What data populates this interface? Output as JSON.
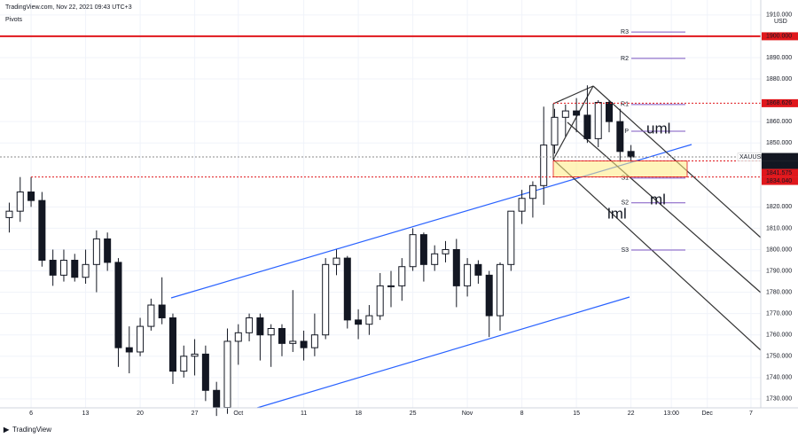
{
  "header": "TradingView.com, Nov 22, 2021 09:43 UTC+3",
  "footer": "TradingView",
  "chart_data": {
    "type": "candlestick",
    "indicator": "Pivots",
    "symbol": "XAUUSD",
    "currency": "USD",
    "x": [
      -2,
      -1,
      0,
      1,
      2,
      3,
      4,
      5,
      6,
      7,
      8,
      9,
      10,
      11,
      12,
      13,
      14,
      15,
      16,
      17,
      18,
      19,
      20,
      21,
      22,
      23,
      24,
      25,
      26,
      27,
      28,
      29,
      30,
      31,
      32,
      33,
      34,
      35,
      36,
      37,
      38,
      39,
      40,
      41,
      42,
      43,
      44,
      45,
      46,
      47,
      48,
      49,
      50,
      51,
      52,
      53,
      54,
      55
    ],
    "open": [
      1815,
      1818,
      1827,
      1823,
      1795,
      1788,
      1795,
      1787,
      1793,
      1805,
      1794,
      1754,
      1752,
      1764,
      1774,
      1768,
      1743,
      1750,
      1751,
      1734,
      1726,
      1757,
      1761,
      1768,
      1760,
      1763,
      1756,
      1757,
      1754,
      1760,
      1793,
      1796,
      1767,
      1765,
      1769,
      1783,
      1783,
      1792,
      1807,
      1793,
      1798,
      1800,
      1783,
      1793,
      1788,
      1769,
      1793,
      1818,
      1824,
      1830,
      1849,
      1862,
      1865,
      1863,
      1852,
      1869,
      1860,
      1846
    ],
    "high": [
      1822,
      1834,
      1834,
      1827,
      1800,
      1800,
      1798,
      1800,
      1809,
      1808,
      1796,
      1764,
      1768,
      1777,
      1787,
      1770,
      1755,
      1758,
      1755,
      1738,
      1763,
      1765,
      1770,
      1770,
      1765,
      1765,
      1781,
      1762,
      1770,
      1796,
      1800,
      1797,
      1772,
      1774,
      1789,
      1790,
      1796,
      1810,
      1808,
      1802,
      1804,
      1805,
      1796,
      1795,
      1790,
      1794,
      1818,
      1828,
      1832,
      1867,
      1866,
      1868,
      1871,
      1877,
      1870,
      1870,
      1866,
      1849
    ],
    "low": [
      1808,
      1813,
      1820,
      1792,
      1783,
      1785,
      1785,
      1784,
      1780,
      1790,
      1745,
      1742,
      1750,
      1762,
      1765,
      1737,
      1740,
      1741,
      1729,
      1722,
      1723,
      1746,
      1757,
      1748,
      1745,
      1750,
      1752,
      1748,
      1750,
      1758,
      1788,
      1763,
      1758,
      1760,
      1767,
      1773,
      1776,
      1790,
      1785,
      1790,
      1794,
      1773,
      1778,
      1784,
      1759,
      1762,
      1790,
      1812,
      1815,
      1821,
      1845,
      1853,
      1855,
      1850,
      1848,
      1855,
      1841,
      1841
    ],
    "close": [
      1818,
      1827,
      1823,
      1795,
      1788,
      1795,
      1787,
      1793,
      1805,
      1794,
      1754,
      1752,
      1764,
      1774,
      1768,
      1743,
      1750,
      1751,
      1734,
      1726,
      1757,
      1761,
      1768,
      1760,
      1763,
      1756,
      1757,
      1754,
      1760,
      1793,
      1796,
      1767,
      1765,
      1769,
      1783,
      1783,
      1792,
      1807,
      1793,
      1798,
      1800,
      1783,
      1793,
      1788,
      1769,
      1793,
      1818,
      1824,
      1830,
      1849,
      1862,
      1865,
      1863,
      1852,
      1869,
      1860,
      1846,
      1843.41
    ],
    "up_color": "#ffffff",
    "down_color": "#131722",
    "xlim": [
      -2.85,
      66.9
    ],
    "xticks": [
      {
        "value": 0,
        "label": "6"
      },
      {
        "value": 5,
        "label": "13"
      },
      {
        "value": 10,
        "label": "20"
      },
      {
        "value": 15,
        "label": "27"
      },
      {
        "value": 19,
        "label": "Oct"
      },
      {
        "value": 25,
        "label": "11"
      },
      {
        "value": 30,
        "label": "18"
      },
      {
        "value": 35,
        "label": "25"
      },
      {
        "value": 40,
        "label": "Nov"
      },
      {
        "value": 45,
        "label": "8"
      },
      {
        "value": 50,
        "label": "15"
      },
      {
        "value": 55,
        "label": "22"
      },
      {
        "value": 58.7,
        "label": "13:00"
      },
      {
        "value": 62,
        "label": "Dec"
      },
      {
        "value": 66,
        "label": "7"
      }
    ],
    "ylim": [
      1725.8,
      1917
    ],
    "yticks": [
      {
        "value": 1730,
        "label": "1730.000"
      },
      {
        "value": 1740,
        "label": "1740.000"
      },
      {
        "value": 1750,
        "label": "1750.000"
      },
      {
        "value": 1760,
        "label": "1760.000"
      },
      {
        "value": 1770,
        "label": "1770.000"
      },
      {
        "value": 1780,
        "label": "1780.000"
      },
      {
        "value": 1790,
        "label": "1790.000"
      },
      {
        "value": 1800,
        "label": "1800.000"
      },
      {
        "value": 1810,
        "label": "1810.000"
      },
      {
        "value": 1820,
        "label": "1820.000"
      },
      {
        "value": 1850,
        "label": "1850.000"
      },
      {
        "value": 1860,
        "label": "1860.000"
      },
      {
        "value": 1880,
        "label": "1880.000"
      },
      {
        "value": 1890,
        "label": "1890.000"
      },
      {
        "value": 1910,
        "label": "1910.000"
      }
    ],
    "price_labels": [
      {
        "value": 1900,
        "label": "1900.000",
        "color": "#e0171c"
      },
      {
        "value": 1868.626,
        "label": "1868.626",
        "color": "#e0171c"
      },
      {
        "value": 1843.41,
        "label": "1843.410",
        "color": "#131722"
      },
      {
        "value": 1841.575,
        "label": "1841.575",
        "color": "#e0171c"
      },
      {
        "value": 1834.04,
        "label": "1834.040",
        "color": "#e0171c"
      }
    ],
    "countdown": "03:16:55",
    "pivots": [
      {
        "name": "R3",
        "value": 1902
      },
      {
        "name": "R2",
        "value": 1889.6
      },
      {
        "name": "R1",
        "value": 1868
      },
      {
        "name": "P",
        "value": 1855.5
      },
      {
        "name": "S1",
        "value": 1833.5
      },
      {
        "name": "S2",
        "value": 1821.9
      },
      {
        "name": "S3",
        "value": 1799.8
      }
    ],
    "annotations": [
      "uml",
      "ml",
      "lml"
    ]
  }
}
